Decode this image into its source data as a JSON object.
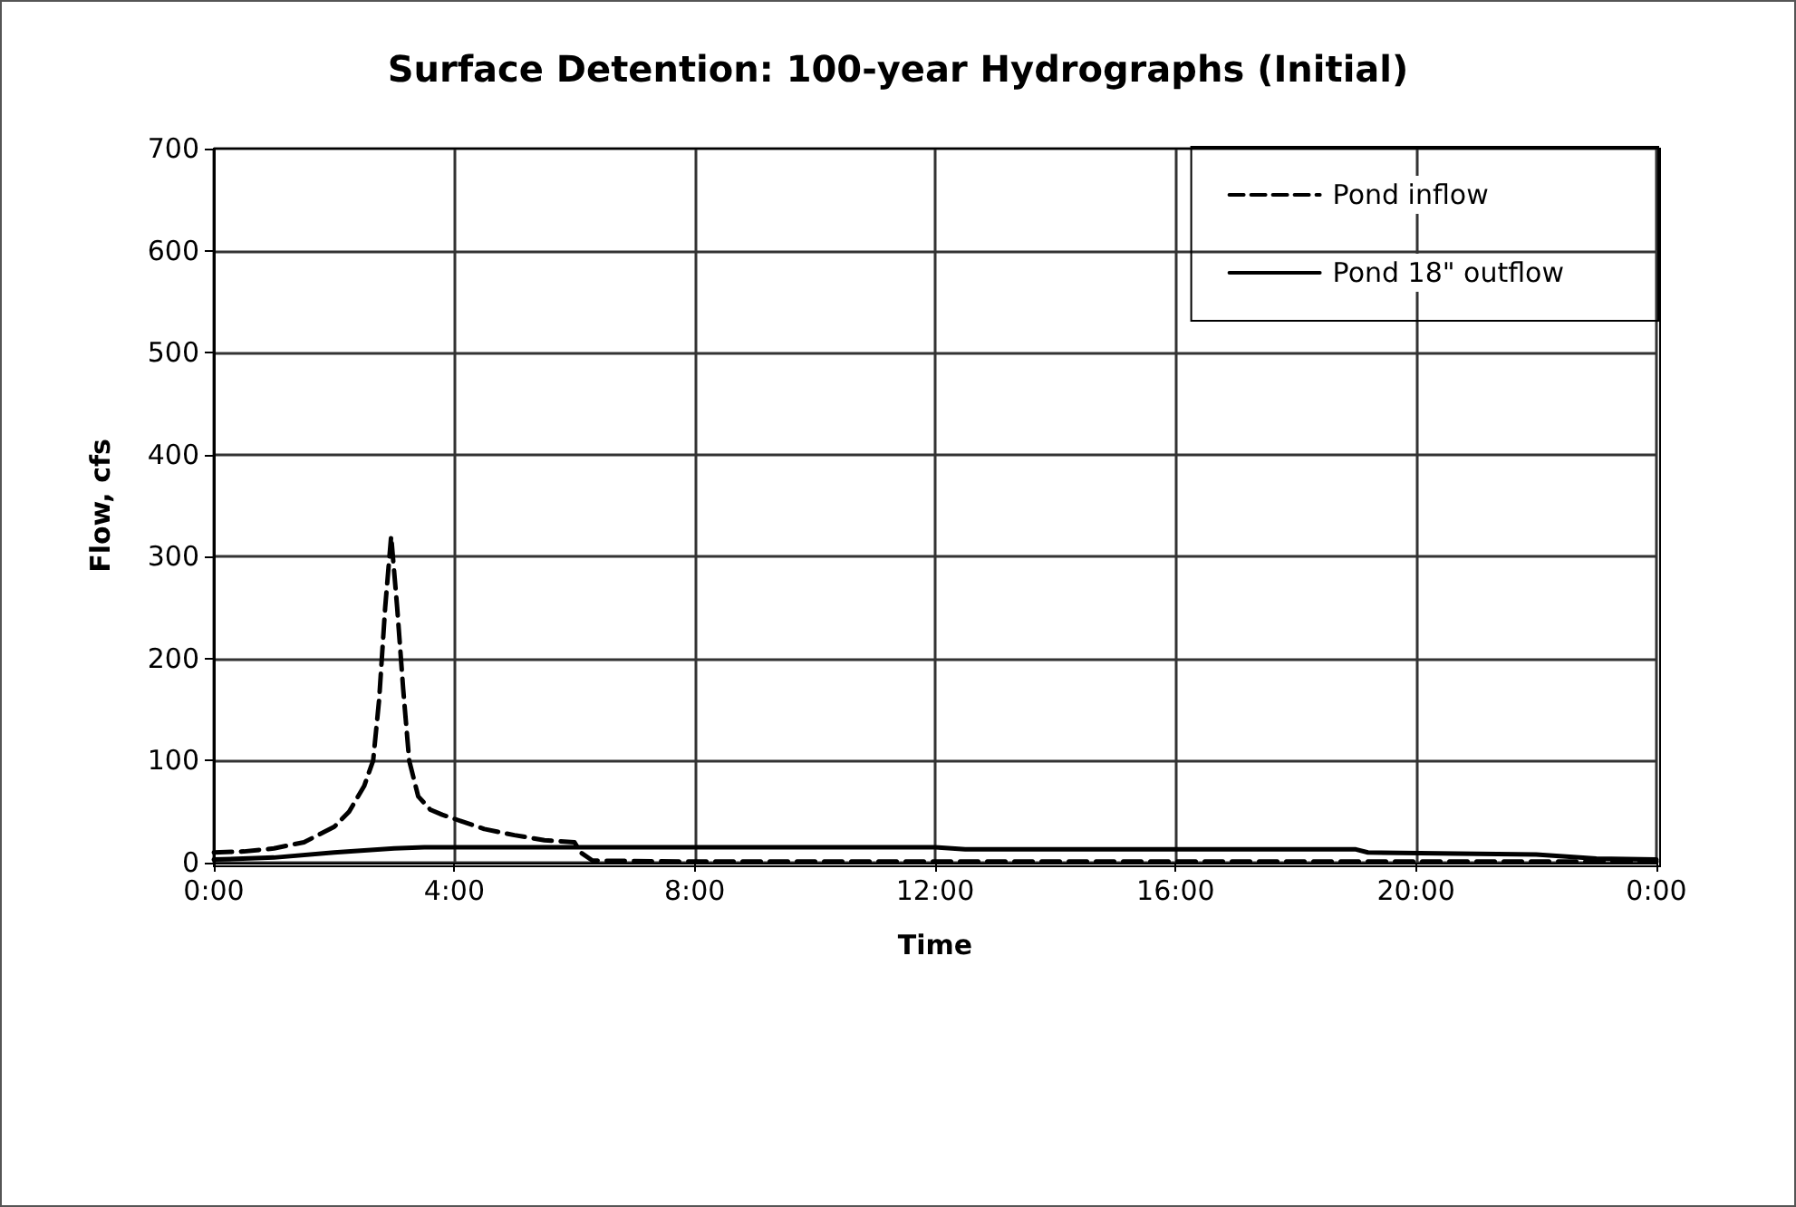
{
  "chart_data": {
    "type": "line",
    "title": "Surface Detention: 100-year Hydrographs (Initial)",
    "xlabel": "Time",
    "ylabel": "Flow, cfs",
    "xlim": [
      0,
      24
    ],
    "xticks": [
      {
        "value": 0,
        "label": "0:00"
      },
      {
        "value": 4,
        "label": "4:00"
      },
      {
        "value": 8,
        "label": "8:00"
      },
      {
        "value": 12,
        "label": "12:00"
      },
      {
        "value": 16,
        "label": "16:00"
      },
      {
        "value": 20,
        "label": "20:00"
      },
      {
        "value": 24,
        "label": "0:00"
      }
    ],
    "ylim": [
      0,
      700
    ],
    "yticks": [
      0,
      100,
      200,
      300,
      400,
      500,
      600,
      700
    ],
    "grid": true,
    "legend": "top right",
    "marker": "none",
    "series": [
      {
        "name": "Pond inflow",
        "color": "#000000",
        "line_style": "dashed",
        "x": [
          0,
          0.5,
          1,
          1.5,
          2,
          2.25,
          2.5,
          2.65,
          2.75,
          2.85,
          2.95,
          3.05,
          3.15,
          3.25,
          3.4,
          3.6,
          3.8,
          4,
          4.5,
          5,
          5.5,
          6,
          6.1,
          6.3,
          8,
          12,
          16,
          20,
          24
        ],
        "values": [
          10,
          11,
          14,
          20,
          35,
          50,
          75,
          100,
          160,
          250,
          320,
          250,
          170,
          100,
          65,
          52,
          47,
          43,
          33,
          27,
          22,
          20,
          10,
          2,
          1,
          1,
          1,
          1,
          1
        ]
      },
      {
        "name": "Pond 18\" outflow",
        "color": "#000000",
        "line_style": "solid",
        "x": [
          0,
          1,
          2,
          2.5,
          3,
          3.5,
          4,
          6,
          8,
          12,
          12.5,
          16,
          19,
          19.2,
          22,
          23,
          24
        ],
        "values": [
          3,
          5,
          10,
          12,
          14,
          15,
          15,
          15,
          15,
          15,
          13,
          13,
          13,
          10,
          8,
          4,
          3
        ]
      }
    ]
  }
}
